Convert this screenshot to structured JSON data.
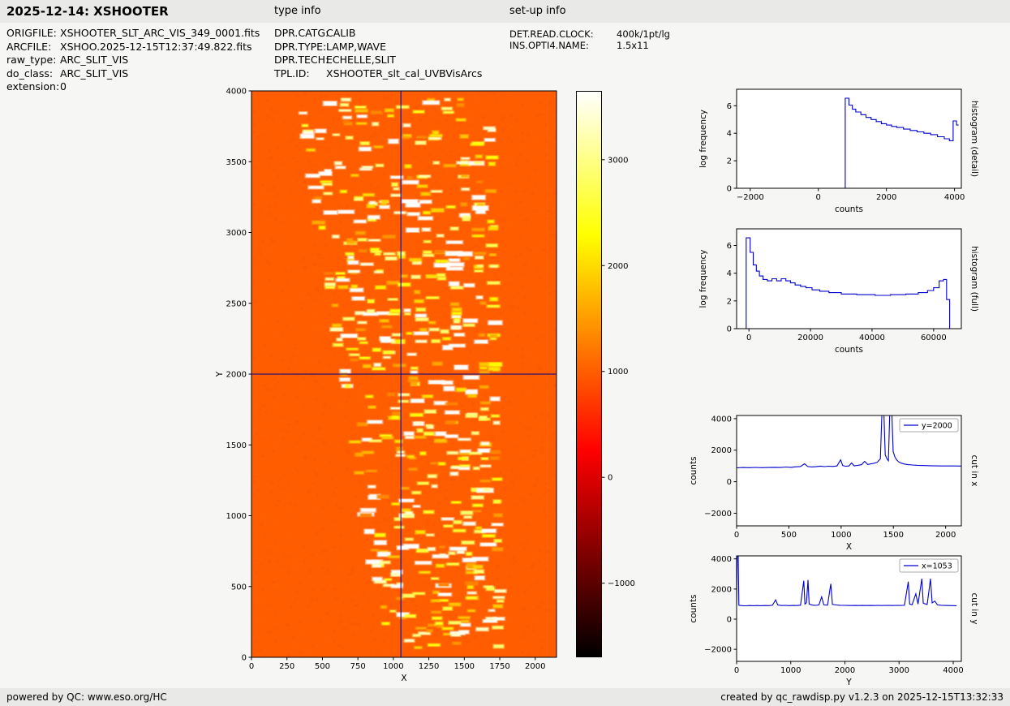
{
  "page": {
    "title": "2025-12-14: XSHOOTER",
    "type_info_label": "type info",
    "setup_info_label": "set-up info",
    "footer_left": "powered by QC: www.eso.org/HC",
    "footer_right": "created by qc_rawdisp.py v1.2.3 on 2025-12-15T13:32:33"
  },
  "metadata": {
    "left": [
      {
        "label": "ORIGFILE:",
        "value": "XSHOOTER_SLT_ARC_VIS_349_0001.fits"
      },
      {
        "label": "ARCFILE:",
        "value": "XSHOO.2025-12-15T12:37:49.822.fits"
      },
      {
        "label": "raw_type:",
        "value": "ARC_SLIT_VIS"
      },
      {
        "label": "do_class:",
        "value": "ARC_SLIT_VIS"
      },
      {
        "label": "extension:",
        "value": "0"
      }
    ],
    "type": [
      {
        "label": "DPR.CATG:",
        "value": "CALIB"
      },
      {
        "label": "DPR.TYPE:",
        "value": "LAMP,WAVE"
      },
      {
        "label": "DPR.TECH:",
        "value": "ECHELLE,SLIT"
      },
      {
        "label": "TPL.ID:",
        "value": "XSHOOTER_slt_cal_UVBVisArcs"
      }
    ],
    "setup": [
      {
        "label": "DET.READ.CLOCK:",
        "value": "400k/1pt/lg"
      },
      {
        "label": "INS.OPTI4.NAME:",
        "value": "1.5x11"
      }
    ]
  },
  "colors": {
    "line_blue": "#0000cd",
    "crosshair": "#00008b",
    "background_orange": "#ff5d00"
  },
  "chart_data": [
    {
      "name": "raw_image",
      "type": "heatmap",
      "description": "XSHOOTER VIS arc-lamp echelle raw frame: orange (~1000 counts) background with short bright arc emission-line segments along ~14 curved spectral orders fanning from lower right to upper left; blue crosshair marks the cut position",
      "xlabel": "X",
      "ylabel": "Y",
      "xlim": [
        0,
        2150
      ],
      "ylim": [
        0,
        4000
      ],
      "xticks": [
        0,
        250,
        500,
        750,
        1000,
        1250,
        1500,
        1750,
        2000
      ],
      "yticks": [
        0,
        500,
        1000,
        1500,
        2000,
        2500,
        3000,
        3500,
        4000
      ],
      "colormap": "hot",
      "vmin": -1700,
      "vmax": 3650,
      "background_counts": 1000,
      "n_orders": 14,
      "crosshair": {
        "x": 1053,
        "y": 2000
      }
    },
    {
      "name": "colorbar",
      "type": "colorbar",
      "colormap": "hot",
      "ticks": [
        3000,
        2000,
        1000,
        0,
        -1000
      ],
      "vmin": -1700,
      "vmax": 3650
    },
    {
      "name": "hist_detail",
      "type": "line",
      "step": true,
      "xlabel": "counts",
      "ylabel": "log frequency",
      "right_label": "histogram (detail)",
      "xlim": [
        -2400,
        4200
      ],
      "ylim": [
        0,
        7.2
      ],
      "xticks": [
        -2000,
        0,
        2000,
        4000
      ],
      "yticks": [
        0,
        2,
        4,
        6
      ],
      "points": [
        [
          -2350,
          0
        ],
        [
          790,
          0
        ],
        [
          790,
          6.55
        ],
        [
          900,
          6.55
        ],
        [
          900,
          6.05
        ],
        [
          1000,
          6.05
        ],
        [
          1000,
          5.75
        ],
        [
          1100,
          5.75
        ],
        [
          1100,
          5.55
        ],
        [
          1250,
          5.55
        ],
        [
          1250,
          5.35
        ],
        [
          1400,
          5.35
        ],
        [
          1400,
          5.15
        ],
        [
          1550,
          5.15
        ],
        [
          1550,
          5.0
        ],
        [
          1700,
          5.0
        ],
        [
          1700,
          4.85
        ],
        [
          1850,
          4.85
        ],
        [
          1850,
          4.7
        ],
        [
          2000,
          4.7
        ],
        [
          2000,
          4.6
        ],
        [
          2150,
          4.6
        ],
        [
          2150,
          4.5
        ],
        [
          2300,
          4.5
        ],
        [
          2300,
          4.42
        ],
        [
          2500,
          4.42
        ],
        [
          2500,
          4.3
        ],
        [
          2700,
          4.3
        ],
        [
          2700,
          4.2
        ],
        [
          2900,
          4.2
        ],
        [
          2900,
          4.1
        ],
        [
          3100,
          4.1
        ],
        [
          3100,
          4.0
        ],
        [
          3300,
          4.0
        ],
        [
          3300,
          3.9
        ],
        [
          3500,
          3.9
        ],
        [
          3500,
          3.75
        ],
        [
          3700,
          3.75
        ],
        [
          3700,
          3.6
        ],
        [
          3850,
          3.6
        ],
        [
          3850,
          3.45
        ],
        [
          3960,
          3.45
        ],
        [
          3960,
          4.9
        ],
        [
          4060,
          4.9
        ],
        [
          4060,
          4.6
        ],
        [
          4120,
          4.6
        ]
      ]
    },
    {
      "name": "hist_full",
      "type": "line",
      "step": true,
      "xlabel": "counts",
      "ylabel": "log frequency",
      "right_label": "histogram (full)",
      "xlim": [
        -4000,
        69000
      ],
      "ylim": [
        0,
        7.2
      ],
      "xticks": [
        0,
        20000,
        40000,
        60000
      ],
      "yticks": [
        0,
        2,
        4,
        6
      ],
      "points": [
        [
          -2800,
          0
        ],
        [
          -900,
          0
        ],
        [
          -900,
          6.55
        ],
        [
          400,
          6.55
        ],
        [
          400,
          5.5
        ],
        [
          1400,
          5.5
        ],
        [
          1400,
          4.6
        ],
        [
          2400,
          4.6
        ],
        [
          2400,
          4.15
        ],
        [
          3400,
          4.15
        ],
        [
          3400,
          3.8
        ],
        [
          4600,
          3.8
        ],
        [
          4600,
          3.55
        ],
        [
          6000,
          3.55
        ],
        [
          6000,
          3.45
        ],
        [
          7500,
          3.45
        ],
        [
          7500,
          3.6
        ],
        [
          9000,
          3.6
        ],
        [
          9000,
          3.45
        ],
        [
          10500,
          3.45
        ],
        [
          10500,
          3.6
        ],
        [
          12000,
          3.6
        ],
        [
          12000,
          3.45
        ],
        [
          13500,
          3.45
        ],
        [
          13500,
          3.3
        ],
        [
          15000,
          3.3
        ],
        [
          15000,
          3.15
        ],
        [
          16800,
          3.15
        ],
        [
          16800,
          3.05
        ],
        [
          18500,
          3.05
        ],
        [
          18500,
          2.95
        ],
        [
          20500,
          2.95
        ],
        [
          20500,
          2.8
        ],
        [
          23000,
          2.8
        ],
        [
          23000,
          2.7
        ],
        [
          26000,
          2.7
        ],
        [
          26000,
          2.6
        ],
        [
          30000,
          2.6
        ],
        [
          30000,
          2.5
        ],
        [
          35000,
          2.5
        ],
        [
          35000,
          2.45
        ],
        [
          41000,
          2.45
        ],
        [
          41000,
          2.4
        ],
        [
          46000,
          2.4
        ],
        [
          46000,
          2.45
        ],
        [
          51000,
          2.45
        ],
        [
          51000,
          2.5
        ],
        [
          55000,
          2.5
        ],
        [
          55000,
          2.6
        ],
        [
          58000,
          2.6
        ],
        [
          58000,
          2.75
        ],
        [
          60000,
          2.75
        ],
        [
          60000,
          2.95
        ],
        [
          61800,
          2.95
        ],
        [
          61800,
          3.45
        ],
        [
          63200,
          3.45
        ],
        [
          63200,
          3.55
        ],
        [
          64200,
          3.55
        ],
        [
          64200,
          2.1
        ],
        [
          65200,
          2.1
        ],
        [
          65200,
          0
        ],
        [
          67500,
          0
        ]
      ]
    },
    {
      "name": "cut_x",
      "type": "line",
      "legend": "y=2000",
      "xlabel": "X",
      "ylabel": "counts",
      "right_label": "cut in x",
      "xlim": [
        0,
        2150
      ],
      "ylim": [
        -2800,
        4200
      ],
      "xticks": [
        0,
        500,
        1000,
        1500,
        2000
      ],
      "yticks": [
        -2000,
        0,
        2000,
        4000
      ],
      "points": [
        [
          0,
          880
        ],
        [
          60,
          900
        ],
        [
          120,
          890
        ],
        [
          180,
          905
        ],
        [
          240,
          890
        ],
        [
          300,
          900
        ],
        [
          360,
          910
        ],
        [
          420,
          900
        ],
        [
          470,
          930
        ],
        [
          520,
          910
        ],
        [
          560,
          940
        ],
        [
          610,
          960
        ],
        [
          650,
          1140
        ],
        [
          680,
          960
        ],
        [
          720,
          935
        ],
        [
          760,
          950
        ],
        [
          800,
          990
        ],
        [
          840,
          955
        ],
        [
          880,
          985
        ],
        [
          920,
          970
        ],
        [
          960,
          1000
        ],
        [
          995,
          1390
        ],
        [
          1015,
          1020
        ],
        [
          1045,
          985
        ],
        [
          1075,
          1000
        ],
        [
          1100,
          1190
        ],
        [
          1125,
          1010
        ],
        [
          1160,
          1040
        ],
        [
          1195,
          1080
        ],
        [
          1225,
          1290
        ],
        [
          1255,
          1090
        ],
        [
          1285,
          1130
        ],
        [
          1315,
          1170
        ],
        [
          1345,
          1230
        ],
        [
          1375,
          1450
        ],
        [
          1392,
          4600
        ],
        [
          1408,
          4600
        ],
        [
          1422,
          1700
        ],
        [
          1438,
          1450
        ],
        [
          1452,
          1330
        ],
        [
          1466,
          4600
        ],
        [
          1484,
          4600
        ],
        [
          1498,
          1900
        ],
        [
          1515,
          1560
        ],
        [
          1532,
          1380
        ],
        [
          1550,
          1260
        ],
        [
          1575,
          1180
        ],
        [
          1605,
          1120
        ],
        [
          1640,
          1080
        ],
        [
          1680,
          1060
        ],
        [
          1730,
          1040
        ],
        [
          1790,
          1025
        ],
        [
          1850,
          1015
        ],
        [
          1910,
          1005
        ],
        [
          1970,
          1000
        ],
        [
          2030,
          1000
        ],
        [
          2090,
          1000
        ],
        [
          2145,
          995
        ]
      ]
    },
    {
      "name": "cut_y",
      "type": "line",
      "legend": "x=1053",
      "xlabel": "Y",
      "ylabel": "counts",
      "right_label": "cut in y",
      "xlim": [
        0,
        4150
      ],
      "ylim": [
        -2800,
        4200
      ],
      "xticks": [
        0,
        1000,
        2000,
        3000,
        4000
      ],
      "yticks": [
        -2000,
        0,
        2000,
        4000
      ],
      "points": [
        [
          0,
          900
        ],
        [
          12,
          4600
        ],
        [
          28,
          4600
        ],
        [
          42,
          920
        ],
        [
          100,
          900
        ],
        [
          170,
          890
        ],
        [
          240,
          905
        ],
        [
          310,
          895
        ],
        [
          380,
          905
        ],
        [
          450,
          895
        ],
        [
          520,
          905
        ],
        [
          590,
          900
        ],
        [
          660,
          920
        ],
        [
          720,
          1280
        ],
        [
          760,
          940
        ],
        [
          830,
          905
        ],
        [
          900,
          915
        ],
        [
          970,
          900
        ],
        [
          1040,
          910
        ],
        [
          1110,
          905
        ],
        [
          1180,
          930
        ],
        [
          1240,
          2550
        ],
        [
          1262,
          1000
        ],
        [
          1290,
          1100
        ],
        [
          1318,
          2600
        ],
        [
          1340,
          1000
        ],
        [
          1400,
          930
        ],
        [
          1460,
          915
        ],
        [
          1520,
          950
        ],
        [
          1570,
          1480
        ],
        [
          1610,
          950
        ],
        [
          1680,
          930
        ],
        [
          1740,
          2350
        ],
        [
          1770,
          980
        ],
        [
          1840,
          940
        ],
        [
          1910,
          920
        ],
        [
          1980,
          915
        ],
        [
          2050,
          910
        ],
        [
          2120,
          905
        ],
        [
          2190,
          910
        ],
        [
          2260,
          905
        ],
        [
          2330,
          910
        ],
        [
          2400,
          905
        ],
        [
          2470,
          910
        ],
        [
          2540,
          905
        ],
        [
          2610,
          915
        ],
        [
          2680,
          905
        ],
        [
          2750,
          915
        ],
        [
          2820,
          910
        ],
        [
          2890,
          905
        ],
        [
          2960,
          915
        ],
        [
          3030,
          910
        ],
        [
          3100,
          920
        ],
        [
          3170,
          2480
        ],
        [
          3195,
          1000
        ],
        [
          3240,
          960
        ],
        [
          3310,
          1680
        ],
        [
          3350,
          1000
        ],
        [
          3420,
          2680
        ],
        [
          3448,
          1050
        ],
        [
          3520,
          980
        ],
        [
          3580,
          2680
        ],
        [
          3610,
          1080
        ],
        [
          3660,
          1200
        ],
        [
          3710,
          950
        ],
        [
          3780,
          920
        ],
        [
          3850,
          910
        ],
        [
          3920,
          905
        ],
        [
          3990,
          900
        ],
        [
          4060,
          895
        ]
      ]
    }
  ]
}
